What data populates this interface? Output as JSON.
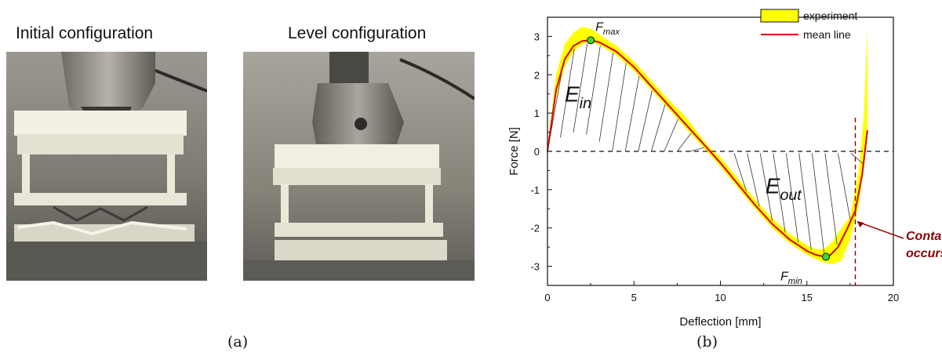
{
  "panel_a": {
    "caption": "(a)",
    "photos": [
      {
        "title": "Initial configuration"
      },
      {
        "title": "Level configuration"
      }
    ]
  },
  "panel_b": {
    "caption": "(b)"
  },
  "chart_data": {
    "type": "line",
    "xlabel": "Deflection [mm]",
    "ylabel": "Force [N]",
    "xlim": [
      0,
      20
    ],
    "ylim": [
      -3.5,
      3.5
    ],
    "xticks": [
      0,
      5,
      10,
      15,
      20
    ],
    "yticks": [
      3,
      2,
      1,
      0,
      -1,
      -2,
      -3
    ],
    "grid": false,
    "legend_position": "top-right",
    "legend": [
      {
        "label": "experiment",
        "kind": "band",
        "color": "#ffff00"
      },
      {
        "label": "mean line",
        "kind": "line",
        "color": "#dd0000"
      }
    ],
    "series": [
      {
        "name": "mean line",
        "color": "#dd0000",
        "x": [
          0,
          0.5,
          1,
          1.5,
          2,
          2.5,
          3,
          4,
          5,
          6,
          7,
          8,
          9,
          9.5,
          10,
          11,
          12,
          13,
          14,
          15,
          15.5,
          16,
          16.3,
          16.8,
          17.3,
          17.8,
          18.2,
          18.5
        ],
        "y": [
          0,
          1.6,
          2.4,
          2.75,
          2.88,
          2.9,
          2.85,
          2.6,
          2.2,
          1.7,
          1.2,
          0.7,
          0.2,
          -0.05,
          -0.3,
          -0.85,
          -1.4,
          -1.9,
          -2.3,
          -2.6,
          -2.7,
          -2.75,
          -2.73,
          -2.5,
          -2.05,
          -1.55,
          -0.6,
          0.55
        ]
      }
    ],
    "band": {
      "name": "experiment",
      "color": "#ffff00",
      "x": [
        0,
        0.5,
        1,
        1.5,
        2,
        2.5,
        3,
        4,
        5,
        6,
        7,
        8,
        9,
        9.5,
        10,
        11,
        12,
        13,
        14,
        15,
        15.5,
        16,
        16.5,
        17,
        17.5,
        18,
        18.3,
        18.5
      ],
      "upper": [
        0.1,
        2.0,
        2.8,
        3.1,
        3.25,
        3.2,
        3.05,
        2.75,
        2.35,
        1.85,
        1.35,
        0.9,
        0.3,
        0.05,
        -0.15,
        -0.7,
        -1.25,
        -1.75,
        -2.15,
        -2.45,
        -2.55,
        -2.55,
        -2.35,
        -2.0,
        -1.7,
        -0.5,
        1.0,
        3.2
      ],
      "lower": [
        0,
        1.4,
        2.2,
        2.6,
        2.8,
        2.85,
        2.78,
        2.5,
        2.1,
        1.6,
        1.1,
        0.6,
        0.1,
        -0.15,
        -0.4,
        -0.95,
        -1.5,
        -2.0,
        -2.4,
        -2.7,
        -2.82,
        -2.9,
        -2.95,
        -2.85,
        -2.3,
        -1.4,
        -0.4,
        0.5
      ]
    },
    "points": [
      {
        "label": "F",
        "sub": "max",
        "x": 2.5,
        "y": 2.9
      },
      {
        "label": "F",
        "sub": "min",
        "x": 16.1,
        "y": -2.75
      }
    ],
    "regions": [
      {
        "label": "E",
        "sub": "in"
      },
      {
        "label": "E",
        "sub": "out"
      }
    ],
    "annotation": {
      "lines": [
        "Contact",
        "occurs"
      ],
      "color": "#8b0000",
      "x": 17.8,
      "y": -1.8
    },
    "zero_line": {
      "y": 0,
      "style": "dashed"
    },
    "contact_line": {
      "x": 17.8,
      "style": "dashed",
      "color": "#8b0000"
    }
  }
}
